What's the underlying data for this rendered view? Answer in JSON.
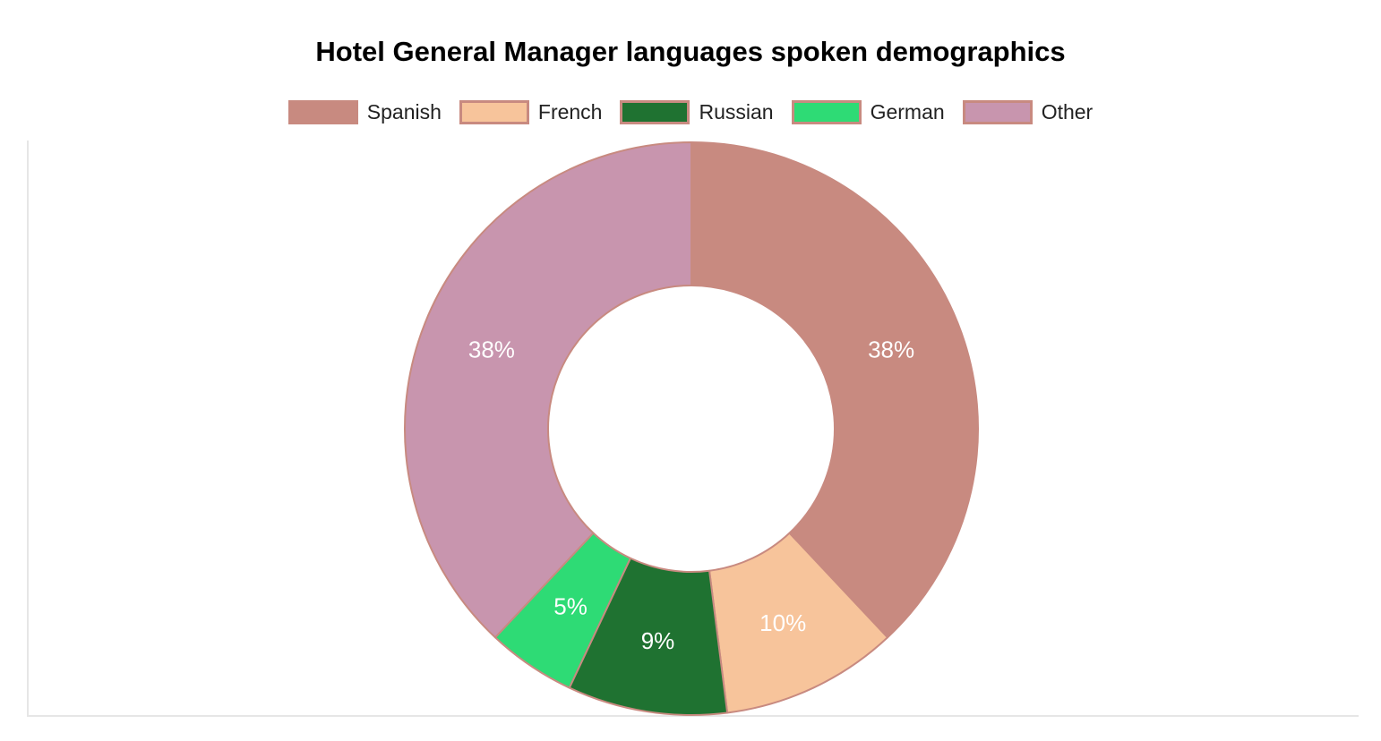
{
  "chart_data": {
    "type": "pie",
    "subtype": "doughnut",
    "title": "Hotel General Manager languages spoken demographics",
    "categories": [
      "Spanish",
      "French",
      "Russian",
      "German",
      "Other"
    ],
    "values": [
      38,
      10,
      9,
      5,
      38
    ],
    "slice_display_labels": [
      "38%",
      "10%",
      "9%",
      "5%",
      "38%"
    ],
    "colors": [
      "#C88A80",
      "#F7C49B",
      "#1F7231",
      "#2EDB75",
      "#C895AE"
    ],
    "slice_border_color": "#C88A80",
    "slice_label_color": "#FFFFFF",
    "title_color": "#000000",
    "legend_text_color": "#222222",
    "plot_border_color": "#E6E6E6",
    "legend_position": "top",
    "start_angle": "top",
    "direction": "clockwise",
    "hole_ratio": 0.5,
    "grid": "off",
    "axes": "hidden"
  }
}
